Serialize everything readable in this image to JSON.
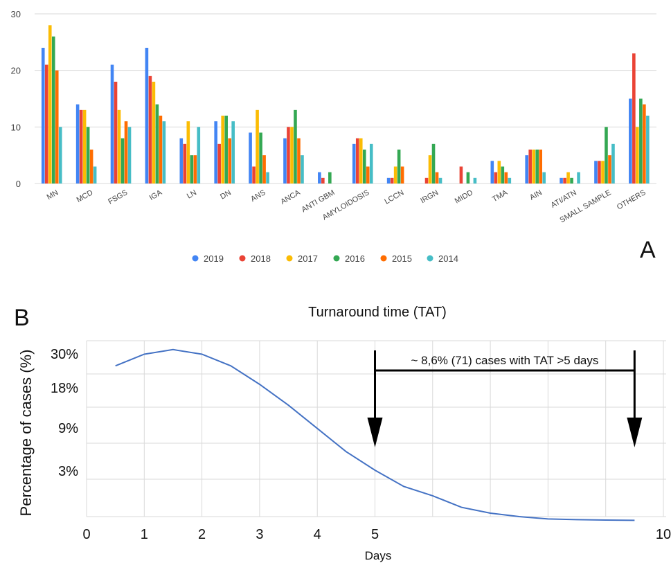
{
  "colors": {
    "series": [
      "#4285F4",
      "#EA4335",
      "#FBBC04",
      "#34A853",
      "#FF6D01",
      "#46BDC6"
    ],
    "grid": "#d9d9d9",
    "line": "#4472C4",
    "arrow": "#000000"
  },
  "chart_data": [
    {
      "panel": "A",
      "type": "bar",
      "title": "",
      "xlabel": "",
      "ylabel": "",
      "ylim": [
        0,
        30
      ],
      "yticks": [
        "0",
        "10",
        "20",
        "30"
      ],
      "legend_position": "bottom",
      "grid": true,
      "categories": [
        "MN",
        "MCD",
        "FSGS",
        "IGA",
        "LN",
        "DN",
        "ANS",
        "ANCA",
        "ANTI GBM",
        "AMYLOIDOSIS",
        "LCCN",
        "IRGN",
        "MIDD",
        "TMA",
        "AIN",
        "ATI/ATN",
        "SMALL SAMPLE",
        "OTHERS"
      ],
      "series": [
        {
          "name": "2019",
          "values": [
            24,
            14,
            21,
            24,
            8,
            11,
            9,
            8,
            2,
            7,
            1,
            0,
            0,
            4,
            5,
            1,
            4,
            15
          ]
        },
        {
          "name": "2018",
          "values": [
            21,
            13,
            18,
            19,
            7,
            7,
            3,
            10,
            1,
            8,
            1,
            1,
            3,
            2,
            6,
            1,
            4,
            23
          ]
        },
        {
          "name": "2017",
          "values": [
            28,
            13,
            13,
            18,
            11,
            12,
            13,
            10,
            0,
            8,
            3,
            5,
            0,
            4,
            6,
            2,
            4,
            10
          ]
        },
        {
          "name": "2016",
          "values": [
            26,
            10,
            8,
            14,
            5,
            12,
            9,
            13,
            2,
            6,
            6,
            7,
            2,
            3,
            6,
            1,
            10,
            15
          ]
        },
        {
          "name": "2015",
          "values": [
            20,
            6,
            11,
            12,
            5,
            8,
            5,
            8,
            0,
            3,
            3,
            2,
            0,
            2,
            6,
            0,
            5,
            14
          ]
        },
        {
          "name": "2014",
          "values": [
            10,
            3,
            10,
            11,
            10,
            11,
            2,
            5,
            0,
            7,
            0,
            1,
            1,
            1,
            2,
            2,
            7,
            12
          ]
        }
      ]
    },
    {
      "panel": "B",
      "type": "line",
      "title": "Turnaround time (TAT)",
      "xlabel": "Days",
      "ylabel": "Percentage of cases (%)",
      "xlim": [
        0,
        10
      ],
      "xticks": [
        "0",
        "1",
        "2",
        "3",
        "4",
        "5",
        "10"
      ],
      "yticks": [
        "30%",
        "18%",
        "9%",
        "3%"
      ],
      "grid": true,
      "series": [
        {
          "name": "",
          "x": [
            0.5,
            1,
            1.5,
            2,
            2.5,
            3,
            3.5,
            4,
            4.5,
            5,
            5.5,
            6,
            6.5,
            7,
            7.5,
            8,
            8.5,
            9,
            9.5
          ],
          "y": [
            0.25,
            0.3,
            0.32,
            0.3,
            0.25,
            0.17,
            0.08,
            -0.02,
            -0.12,
            -0.2,
            -0.27,
            -0.31,
            -0.36,
            -0.385,
            -0.4,
            -0.41,
            -0.413,
            -0.415,
            -0.416
          ]
        }
      ],
      "annotation": {
        "text": "~ 8,6% (71) cases with TAT >5 days",
        "from_day": 5,
        "to_day": 9.5
      }
    }
  ]
}
